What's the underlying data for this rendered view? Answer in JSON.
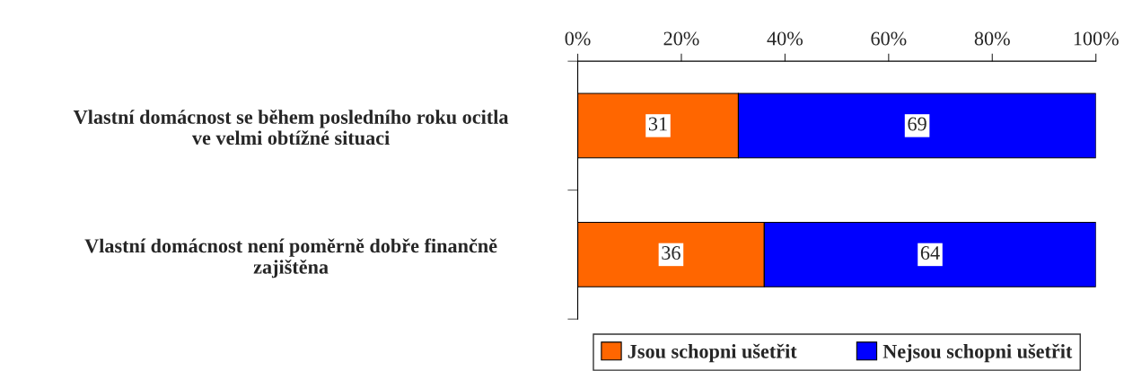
{
  "chart_data": {
    "type": "bar",
    "orientation": "horizontal",
    "stacked": true,
    "data_labels": true,
    "categories": [
      "Vlastní domácnost se během posledního roku ocitla\nve velmi obtížné situaci",
      "Vlastní domácnost není poměrně dobře finančně\nzajištěna"
    ],
    "series": [
      {
        "name": "Jsou schopni ušetřit",
        "color": "#ff6600",
        "values": [
          31,
          36
        ]
      },
      {
        "name": "Nejsou schopni ušetřit",
        "color": "#0000ff",
        "values": [
          69,
          64
        ]
      }
    ],
    "xlim": [
      0,
      100
    ],
    "xticks": [
      {
        "value": 0,
        "label": "0%"
      },
      {
        "value": 20,
        "label": "20%"
      },
      {
        "value": 40,
        "label": "40%"
      },
      {
        "value": 60,
        "label": "60%"
      },
      {
        "value": 80,
        "label": "80%"
      },
      {
        "value": 100,
        "label": "100%"
      }
    ],
    "legend": "bottom",
    "grid": false
  }
}
